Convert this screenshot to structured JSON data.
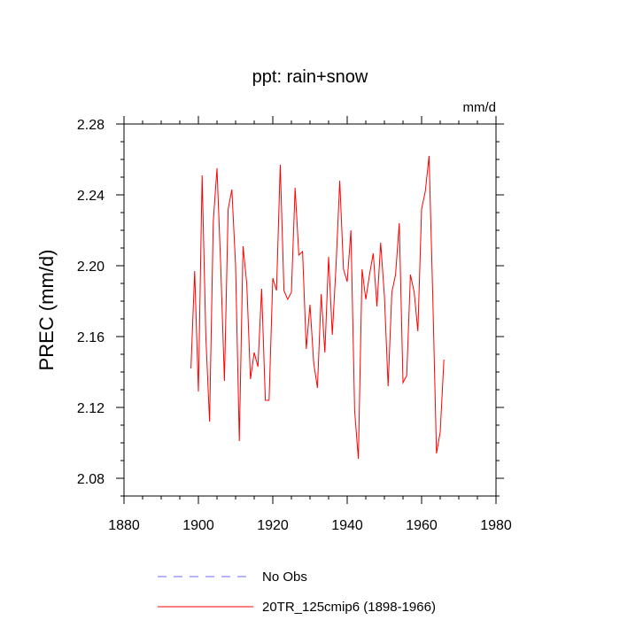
{
  "chart_data": {
    "type": "line",
    "title": "ppt: rain+snow",
    "units": "mm/d",
    "ylabel": "PREC  (mm/d)",
    "xlabel": "",
    "xlim": [
      1880,
      1980
    ],
    "ylim": [
      2.07,
      2.28
    ],
    "xticks": [
      1880,
      1900,
      1920,
      1940,
      1960,
      1980
    ],
    "xtick_labels": [
      "1880",
      "1900",
      "1920",
      "1940",
      "1960",
      "1980"
    ],
    "yticks": [
      2.08,
      2.12,
      2.16,
      2.2,
      2.24,
      2.28
    ],
    "ytick_labels": [
      "2.08",
      "2.12",
      "2.16",
      "2.20",
      "2.24",
      "2.28"
    ],
    "grid": false,
    "legend": [
      {
        "label": "No Obs",
        "color": "#6a6aff",
        "dash": "dashed"
      },
      {
        "label": "20TR_125cmip6 (1898-1966)",
        "color": "#ff0000",
        "dash": "solid"
      }
    ],
    "series": [
      {
        "name": "20TR_125cmip6 (1898-1966)",
        "color": "#ff0000",
        "x": [
          1898,
          1899,
          1900,
          1901,
          1902,
          1903,
          1904,
          1905,
          1906,
          1907,
          1908,
          1909,
          1910,
          1911,
          1912,
          1913,
          1914,
          1915,
          1916,
          1917,
          1918,
          1919,
          1920,
          1921,
          1922,
          1923,
          1924,
          1925,
          1926,
          1927,
          1928,
          1929,
          1930,
          1931,
          1932,
          1933,
          1934,
          1935,
          1936,
          1937,
          1938,
          1939,
          1940,
          1941,
          1942,
          1943,
          1944,
          1945,
          1946,
          1947,
          1948,
          1949,
          1950,
          1951,
          1952,
          1953,
          1954,
          1955,
          1956,
          1957,
          1958,
          1959,
          1960,
          1961,
          1962,
          1963,
          1964,
          1965,
          1966
        ],
        "values": [
          2.142,
          2.197,
          2.129,
          2.251,
          2.16,
          2.112,
          2.225,
          2.255,
          2.2,
          2.135,
          2.232,
          2.243,
          2.2,
          2.101,
          2.211,
          2.19,
          2.136,
          2.151,
          2.143,
          2.187,
          2.124,
          2.124,
          2.193,
          2.186,
          2.257,
          2.186,
          2.181,
          2.185,
          2.244,
          2.206,
          2.208,
          2.153,
          2.178,
          2.145,
          2.131,
          2.184,
          2.151,
          2.205,
          2.161,
          2.2,
          2.248,
          2.198,
          2.191,
          2.22,
          2.118,
          2.091,
          2.198,
          2.181,
          2.195,
          2.207,
          2.177,
          2.213,
          2.183,
          2.132,
          2.185,
          2.195,
          2.224,
          2.134,
          2.138,
          2.195,
          2.185,
          2.163,
          2.232,
          2.242,
          2.262,
          2.183,
          2.094,
          2.106,
          2.147
        ]
      }
    ]
  }
}
